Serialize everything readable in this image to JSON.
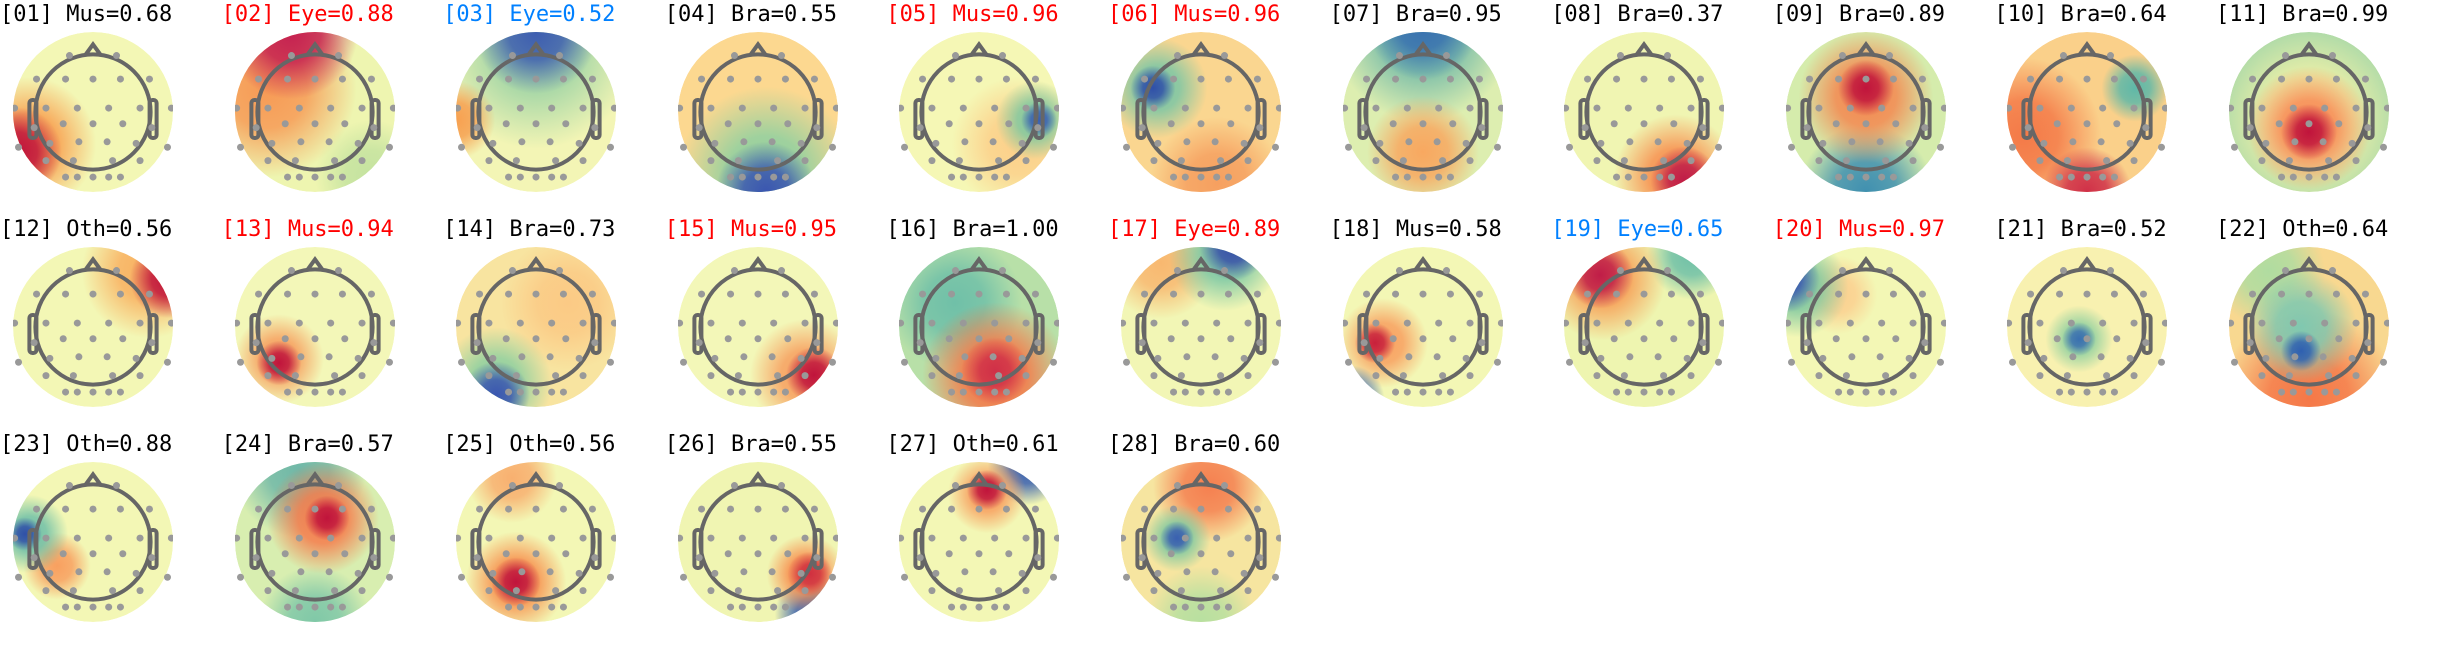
{
  "status_colors": {
    "flagged": "#ff0000",
    "review": "#0080ff",
    "normal": "#000000"
  },
  "components": [
    {
      "label": "[01] Mus=0.68",
      "status": "normal"
    },
    {
      "label": "[02] Eye=0.88",
      "status": "flagged"
    },
    {
      "label": "[03] Eye=0.52",
      "status": "review"
    },
    {
      "label": "[04] Bra=0.55",
      "status": "normal"
    },
    {
      "label": "[05] Mus=0.96",
      "status": "flagged"
    },
    {
      "label": "[06] Mus=0.96",
      "status": "flagged"
    },
    {
      "label": "[07] Bra=0.95",
      "status": "normal"
    },
    {
      "label": "[08] Bra=0.37",
      "status": "normal"
    },
    {
      "label": "[09] Bra=0.89",
      "status": "normal"
    },
    {
      "label": "[10] Bra=0.64",
      "status": "normal"
    },
    {
      "label": "[11] Bra=0.99",
      "status": "normal"
    },
    {
      "label": "[12] Oth=0.56",
      "status": "normal"
    },
    {
      "label": "[13] Mus=0.94",
      "status": "flagged"
    },
    {
      "label": "[14] Bra=0.73",
      "status": "normal"
    },
    {
      "label": "[15] Mus=0.95",
      "status": "flagged"
    },
    {
      "label": "[16] Bra=1.00",
      "status": "normal"
    },
    {
      "label": "[17] Eye=0.89",
      "status": "flagged"
    },
    {
      "label": "[18] Mus=0.58",
      "status": "normal"
    },
    {
      "label": "[19] Eye=0.65",
      "status": "review"
    },
    {
      "label": "[20] Mus=0.97",
      "status": "flagged"
    },
    {
      "label": "[21] Bra=0.52",
      "status": "normal"
    },
    {
      "label": "[22] Oth=0.64",
      "status": "normal"
    },
    {
      "label": "[23] Oth=0.88",
      "status": "normal"
    },
    {
      "label": "[24] Bra=0.57",
      "status": "normal"
    },
    {
      "label": "[25] Oth=0.56",
      "status": "normal"
    },
    {
      "label": "[26] Bra=0.55",
      "status": "normal"
    },
    {
      "label": "[27] Oth=0.61",
      "status": "normal"
    },
    {
      "label": "[28] Bra=0.60",
      "status": "normal"
    }
  ]
}
